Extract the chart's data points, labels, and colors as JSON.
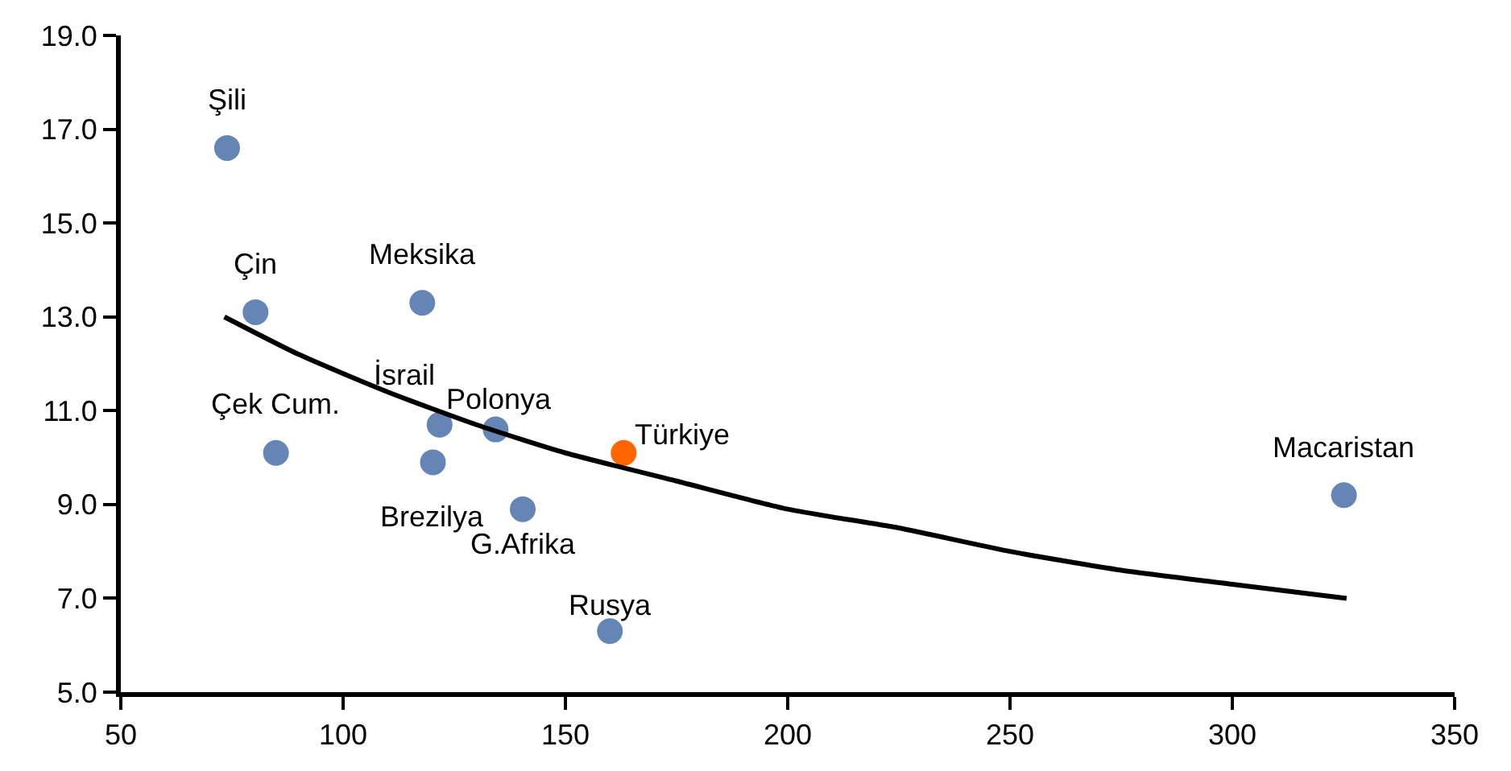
{
  "chart_data": {
    "type": "scatter",
    "xlim": [
      50,
      350
    ],
    "xticks": [
      50,
      100,
      150,
      200,
      250,
      300,
      350
    ],
    "ylim": [
      5,
      19
    ],
    "yticks": [
      {
        "value": 5,
        "label": "5.0"
      },
      {
        "value": 7,
        "label": "7.0"
      },
      {
        "value": 9,
        "label": "9.0"
      },
      {
        "value": 11,
        "label": "11.0"
      },
      {
        "value": 13,
        "label": "13.0"
      },
      {
        "value": 15,
        "label": "15.0"
      },
      {
        "value": 17,
        "label": "17.0"
      },
      {
        "value": 19,
        "label": "19.0"
      }
    ],
    "grid": false,
    "legend": false,
    "marker": "circle",
    "series": [
      {
        "x": [
          73.9,
          80.3,
          117.8,
          84.9,
          121.7,
          134.3,
          120.2,
          140.4,
          160.0,
          163.1,
          325.1
        ],
        "values": [
          16.6,
          13.1,
          13.3,
          10.1,
          10.7,
          10.6,
          9.9,
          8.9,
          6.3,
          10.1,
          9.2
        ],
        "colors": [
          "#6586b5",
          "#6586b5",
          "#6586b5",
          "#6586b5",
          "#6586b5",
          "#6586b5",
          "#6586b5",
          "#6586b5",
          "#6586b5",
          "#ff6600",
          "#6586b5"
        ]
      },
      {
        "type": "line",
        "color": "#000000",
        "line_style": "solid",
        "marker": "none",
        "x": [
          73.3,
          90,
          110,
          130,
          150,
          175,
          200,
          225,
          250,
          275,
          300,
          325.7
        ],
        "values": [
          13.0,
          12.2,
          11.4,
          10.7,
          10.1,
          9.5,
          8.9,
          8.5,
          8.0,
          7.6,
          7.3,
          7.0
        ]
      }
    ],
    "annotations": [
      {
        "text": "Şili",
        "x": 73.9,
        "y": 16.6
      },
      {
        "text": "Çin",
        "x": 80.3,
        "y": 13.1
      },
      {
        "text": "Meksika",
        "x": 117.8,
        "y": 13.3
      },
      {
        "text": "Çek Cum.",
        "x": 84.9,
        "y": 10.1
      },
      {
        "text": "İsrail",
        "x": 121.7,
        "y": 10.7
      },
      {
        "text": "Polonya",
        "x": 134.3,
        "y": 10.6
      },
      {
        "text": "Brezilya",
        "x": 120.2,
        "y": 9.9
      },
      {
        "text": "G.Afrika",
        "x": 140.4,
        "y": 8.9
      },
      {
        "text": "Rusya",
        "x": 160.0,
        "y": 6.3
      },
      {
        "text": "Türkiye",
        "x": 163.1,
        "y": 10.1
      },
      {
        "text": "Macaristan",
        "x": 325.1,
        "y": 9.2
      }
    ]
  }
}
